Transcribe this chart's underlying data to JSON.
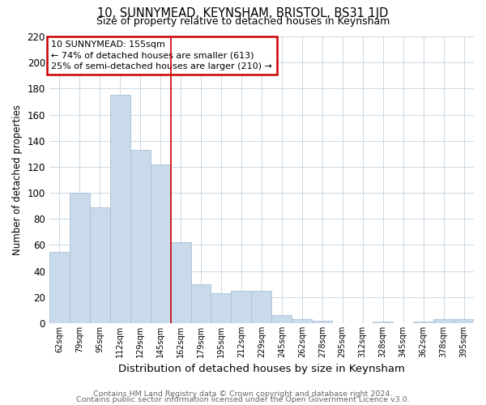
{
  "title": "10, SUNNYMEAD, KEYNSHAM, BRISTOL, BS31 1JD",
  "subtitle": "Size of property relative to detached houses in Keynsham",
  "xlabel": "Distribution of detached houses by size in Keynsham",
  "ylabel": "Number of detached properties",
  "bar_labels": [
    "62sqm",
    "79sqm",
    "95sqm",
    "112sqm",
    "129sqm",
    "145sqm",
    "162sqm",
    "179sqm",
    "195sqm",
    "212sqm",
    "229sqm",
    "245sqm",
    "262sqm",
    "278sqm",
    "295sqm",
    "312sqm",
    "328sqm",
    "345sqm",
    "362sqm",
    "378sqm",
    "395sqm"
  ],
  "bar_values": [
    55,
    100,
    89,
    175,
    133,
    122,
    62,
    30,
    23,
    25,
    25,
    6,
    3,
    2,
    0,
    0,
    1,
    0,
    1,
    3,
    3
  ],
  "bar_color": "#c9daea",
  "bar_edgecolor": "#a8c0d4",
  "vline_idx": 6,
  "vline_color": "#cc0000",
  "annotation_text": "10 SUNNYMEAD: 155sqm\n← 74% of detached houses are smaller (613)\n25% of semi-detached houses are larger (210) →",
  "annotation_box_color": "#cc0000",
  "ylim": [
    0,
    220
  ],
  "yticks": [
    0,
    20,
    40,
    60,
    80,
    100,
    120,
    140,
    160,
    180,
    200,
    220
  ],
  "footer_line1": "Contains HM Land Registry data © Crown copyright and database right 2024.",
  "footer_line2": "Contains public sector information licensed under the Open Government Licence v3.0.",
  "bg_color": "#ffffff",
  "grid_color": "#ccd8e4"
}
